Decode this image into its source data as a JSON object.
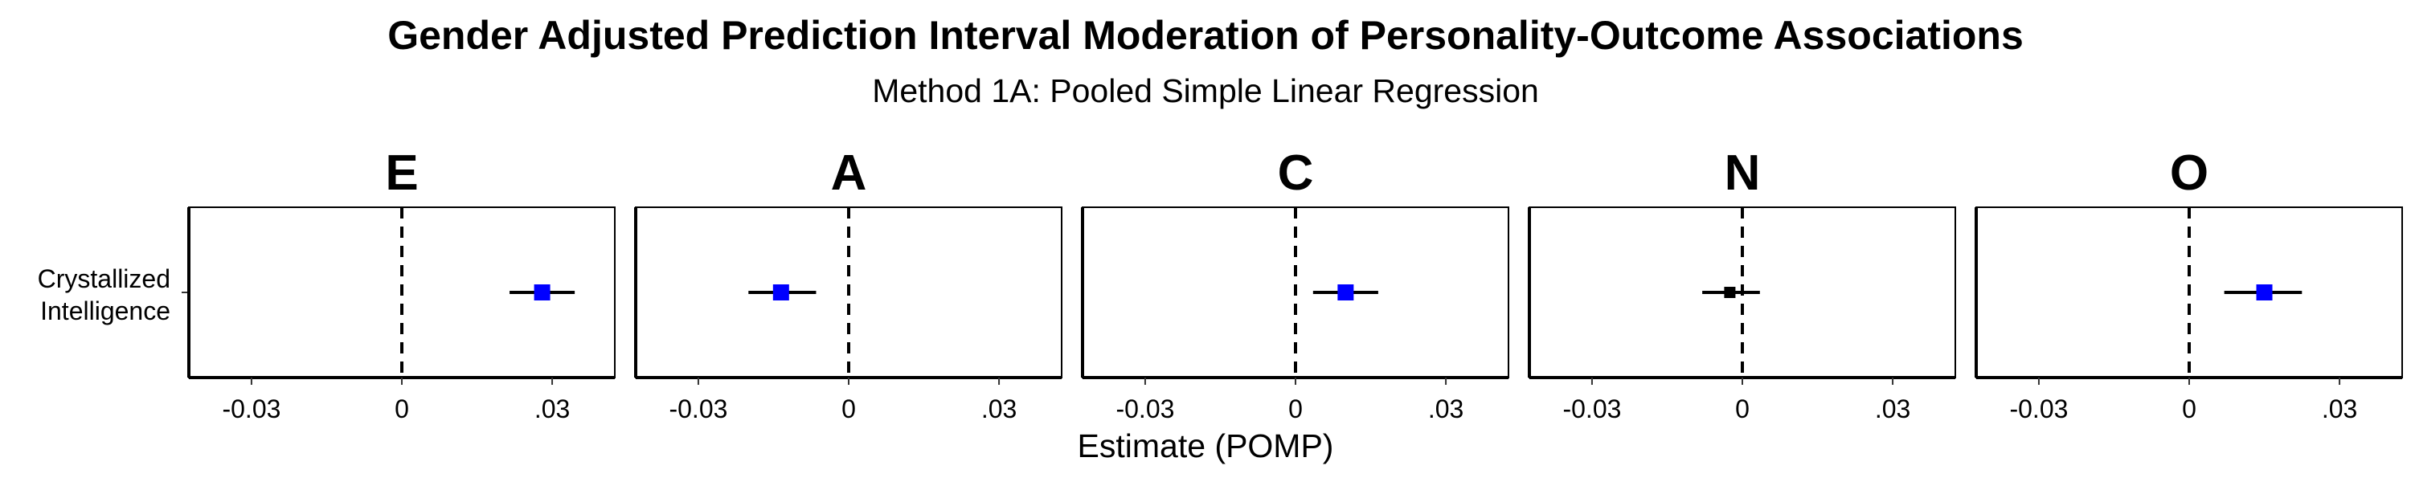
{
  "chart_data": {
    "type": "forest",
    "title": "Gender Adjusted Prediction Interval Moderation of Personality-Outcome Associations",
    "subtitle": "Method 1A: Pooled Simple Linear Regression",
    "xlabel": "Estimate (POMP)",
    "y_categories": [
      "Crystallized Intelligence"
    ],
    "x_ticks": [
      {
        "value": -0.03,
        "label": "-0.03"
      },
      {
        "value": 0,
        "label": "0"
      },
      {
        "value": 0.03,
        "label": ".03"
      }
    ],
    "xlim": [
      -0.0425,
      0.0425
    ],
    "reference_line": 0,
    "panels": [
      {
        "name": "E",
        "estimate": 0.028,
        "lower": 0.0215,
        "upper": 0.0345,
        "significant": true
      },
      {
        "name": "A",
        "estimate": -0.0135,
        "lower": -0.02,
        "upper": -0.0065,
        "significant": true
      },
      {
        "name": "C",
        "estimate": 0.01,
        "lower": 0.0035,
        "upper": 0.0165,
        "significant": true
      },
      {
        "name": "N",
        "estimate": -0.0025,
        "lower": -0.008,
        "upper": 0.0035,
        "significant": false
      },
      {
        "name": "O",
        "estimate": 0.015,
        "lower": 0.007,
        "upper": 0.0225,
        "significant": true
      }
    ],
    "colors": {
      "significant": "#0000ff",
      "not_significant": "#000000"
    }
  }
}
